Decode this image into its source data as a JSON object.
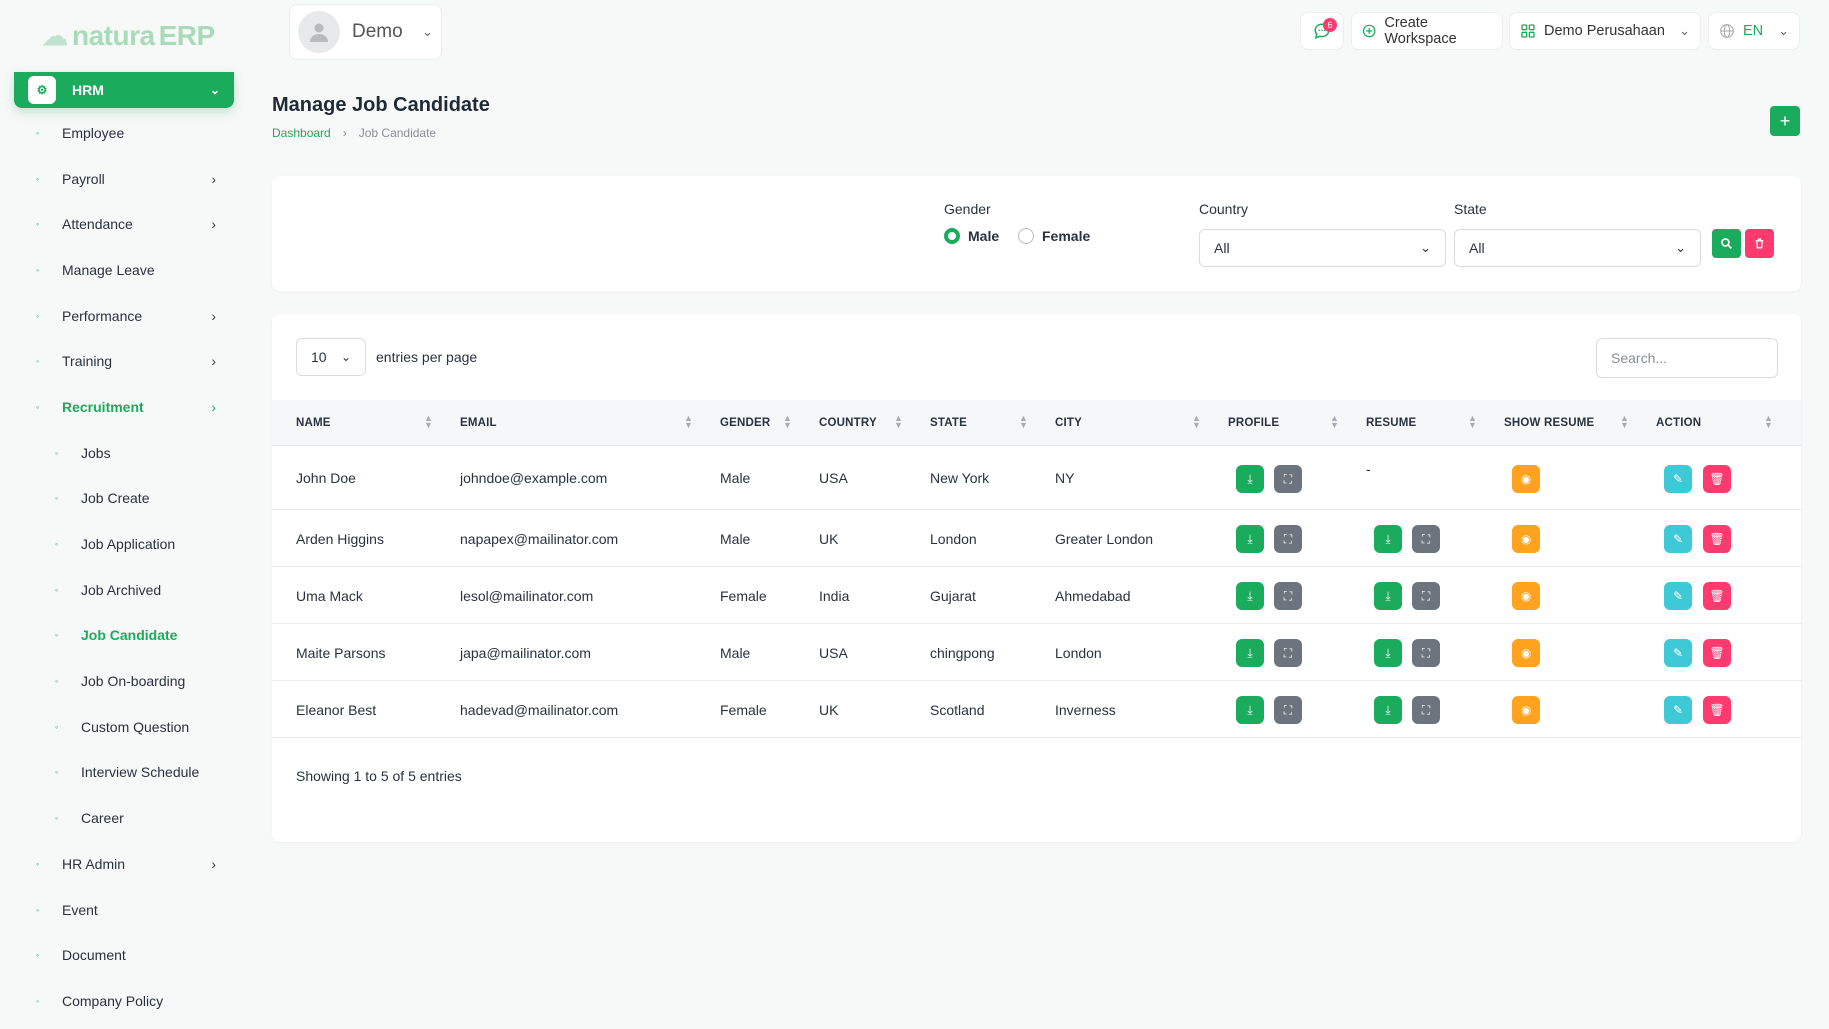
{
  "app": {
    "logo_a": "natura",
    "logo_b": "ERP"
  },
  "header": {
    "user_name": "Demo",
    "notifications_count": "6",
    "create_workspace_label": "Create Workspace",
    "workspace_name": "Demo Perusahaan",
    "language": "EN"
  },
  "sidebar": {
    "module": "HRM",
    "items": [
      {
        "label": "Employee"
      },
      {
        "label": "Payroll"
      },
      {
        "label": "Attendance"
      },
      {
        "label": "Manage Leave"
      },
      {
        "label": "Performance"
      },
      {
        "label": "Training"
      },
      {
        "label": "Recruitment"
      },
      {
        "label": "Jobs"
      },
      {
        "label": "Job Create"
      },
      {
        "label": "Job Application"
      },
      {
        "label": "Job Archived"
      },
      {
        "label": "Job Candidate"
      },
      {
        "label": "Job On-boarding"
      },
      {
        "label": "Custom Question"
      },
      {
        "label": "Interview Schedule"
      },
      {
        "label": "Career"
      },
      {
        "label": "HR Admin"
      },
      {
        "label": "Event"
      },
      {
        "label": "Document"
      },
      {
        "label": "Company Policy"
      }
    ]
  },
  "page": {
    "title": "Manage Job Candidate",
    "breadcrumb_home": "Dashboard",
    "breadcrumb_current": "Job Candidate"
  },
  "filter": {
    "gender_label": "Gender",
    "gender_male": "Male",
    "gender_female": "Female",
    "gender_selected": "Male",
    "country_label": "Country",
    "country_value": "All",
    "state_label": "State",
    "state_value": "All"
  },
  "table": {
    "entries_value": "10",
    "entries_label": "entries per page",
    "search_placeholder": "Search...",
    "columns": [
      "NAME",
      "EMAIL",
      "GENDER",
      "COUNTRY",
      "STATE",
      "CITY",
      "PROFILE",
      "RESUME",
      "SHOW RESUME",
      "ACTION"
    ],
    "rows": [
      {
        "name": "John Doe",
        "email": "johndoe@example.com",
        "gender": "Male",
        "country": "USA",
        "state": "New York",
        "city": "NY",
        "resume": "-"
      },
      {
        "name": "Arden Higgins",
        "email": "napapex@mailinator.com",
        "gender": "Male",
        "country": "UK",
        "state": "London",
        "city": "Greater London"
      },
      {
        "name": "Uma Mack",
        "email": "lesol@mailinator.com",
        "gender": "Female",
        "country": "India",
        "state": "Gujarat",
        "city": "Ahmedabad"
      },
      {
        "name": "Maite Parsons",
        "email": "japa@mailinator.com",
        "gender": "Male",
        "country": "USA",
        "state": "chingpong",
        "city": "London"
      },
      {
        "name": "Eleanor Best",
        "email": "hadevad@mailinator.com",
        "gender": "Female",
        "country": "UK",
        "state": "Scotland",
        "city": "Inverness"
      }
    ],
    "info": "Showing 1 to 5 of 5 entries"
  },
  "colors": {
    "primary": "#1bab5c",
    "danger": "#ff3a6e",
    "warning": "#ffa21d",
    "info": "#3ec9d6",
    "secondary": "#6c757d"
  }
}
